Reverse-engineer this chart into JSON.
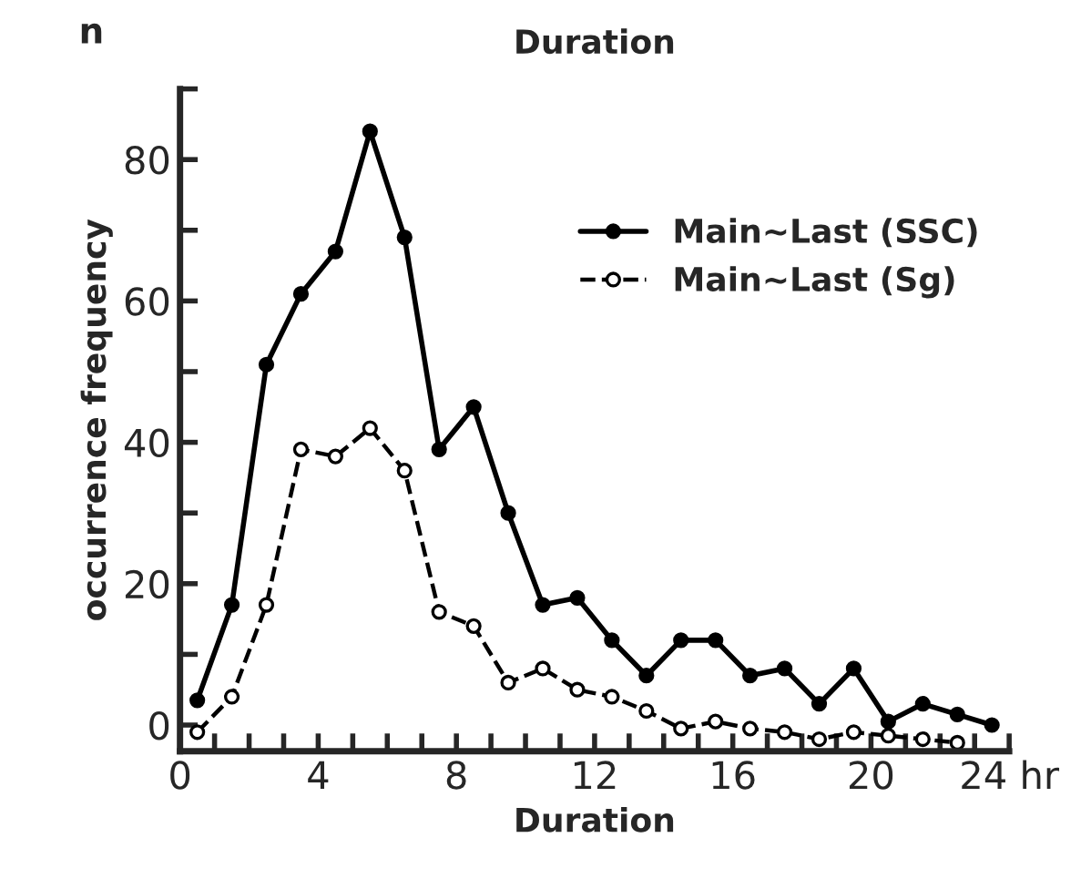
{
  "chart_data": {
    "type": "line",
    "title": "Duration",
    "xlabel": "Duration",
    "ylabel": "occurrence frequency",
    "annotations": [
      "n"
    ],
    "x": [
      0.5,
      1.5,
      2.5,
      3.5,
      4.5,
      5.5,
      6.5,
      7.5,
      8.5,
      9.5,
      10.5,
      11.5,
      12.5,
      13.5,
      14.5,
      15.5,
      16.5,
      17.5,
      18.5,
      19.5,
      20.5,
      21.5,
      22.5,
      23.5
    ],
    "series": [
      {
        "name": "Main~Last (SSC)",
        "color": "#000000",
        "line_style": "solid",
        "marker": "circle",
        "values": [
          3.5,
          17,
          51,
          61,
          67,
          84,
          69,
          39,
          45,
          30,
          17,
          18,
          12,
          7,
          12,
          12,
          7,
          8,
          3,
          8,
          0.5,
          3,
          1.5,
          0
        ]
      },
      {
        "name": "Main~Last (Sg)",
        "color": "#000000",
        "line_style": "dashed",
        "marker": "circle",
        "x": [
          0.5,
          1.5,
          2.5,
          3.5,
          4.5,
          5.5,
          6.5,
          7.5,
          8.5,
          9.5,
          10.5,
          11.5,
          12.5,
          13.5,
          14.5,
          15.5,
          16.5,
          17.5,
          18.5,
          19.5,
          20.5,
          21.5,
          22.5
        ],
        "values": [
          -1,
          4,
          17,
          39,
          38,
          42,
          36,
          16,
          14,
          6,
          8,
          5,
          4,
          2,
          -0.5,
          0.5,
          -0.5,
          -1,
          -2,
          -1,
          -1.5,
          -2,
          -2.5
        ]
      }
    ],
    "xlim": [
      0,
      24
    ],
    "xticks": [
      0,
      {
        "value": 1,
        "label": null
      },
      {
        "value": 2,
        "label": null
      },
      {
        "value": 3,
        "label": null
      },
      4,
      {
        "value": 5,
        "label": null
      },
      {
        "value": 6,
        "label": null
      },
      {
        "value": 7,
        "label": null
      },
      8,
      {
        "value": 9,
        "label": null
      },
      {
        "value": 10,
        "label": null
      },
      {
        "value": 11,
        "label": null
      },
      12,
      {
        "value": 13,
        "label": null
      },
      {
        "value": 14,
        "label": null
      },
      {
        "value": 15,
        "label": null
      },
      16,
      {
        "value": 17,
        "label": null
      },
      {
        "value": 18,
        "label": null
      },
      {
        "value": 19,
        "label": null
      },
      20,
      {
        "value": 21,
        "label": null
      },
      {
        "value": 22,
        "label": null
      },
      {
        "value": 23,
        "label": null
      },
      {
        "value": 24,
        "label": "24 hr"
      }
    ],
    "ylim": [
      -3.7,
      90
    ],
    "yticks": [
      0,
      {
        "value": 10,
        "label": null
      },
      20,
      {
        "value": 30,
        "label": null
      },
      40,
      {
        "value": 50,
        "label": null
      },
      60,
      {
        "value": 70,
        "label": null
      },
      80,
      {
        "value": 90,
        "label": null
      }
    ],
    "grid": false,
    "legend": "top right"
  }
}
